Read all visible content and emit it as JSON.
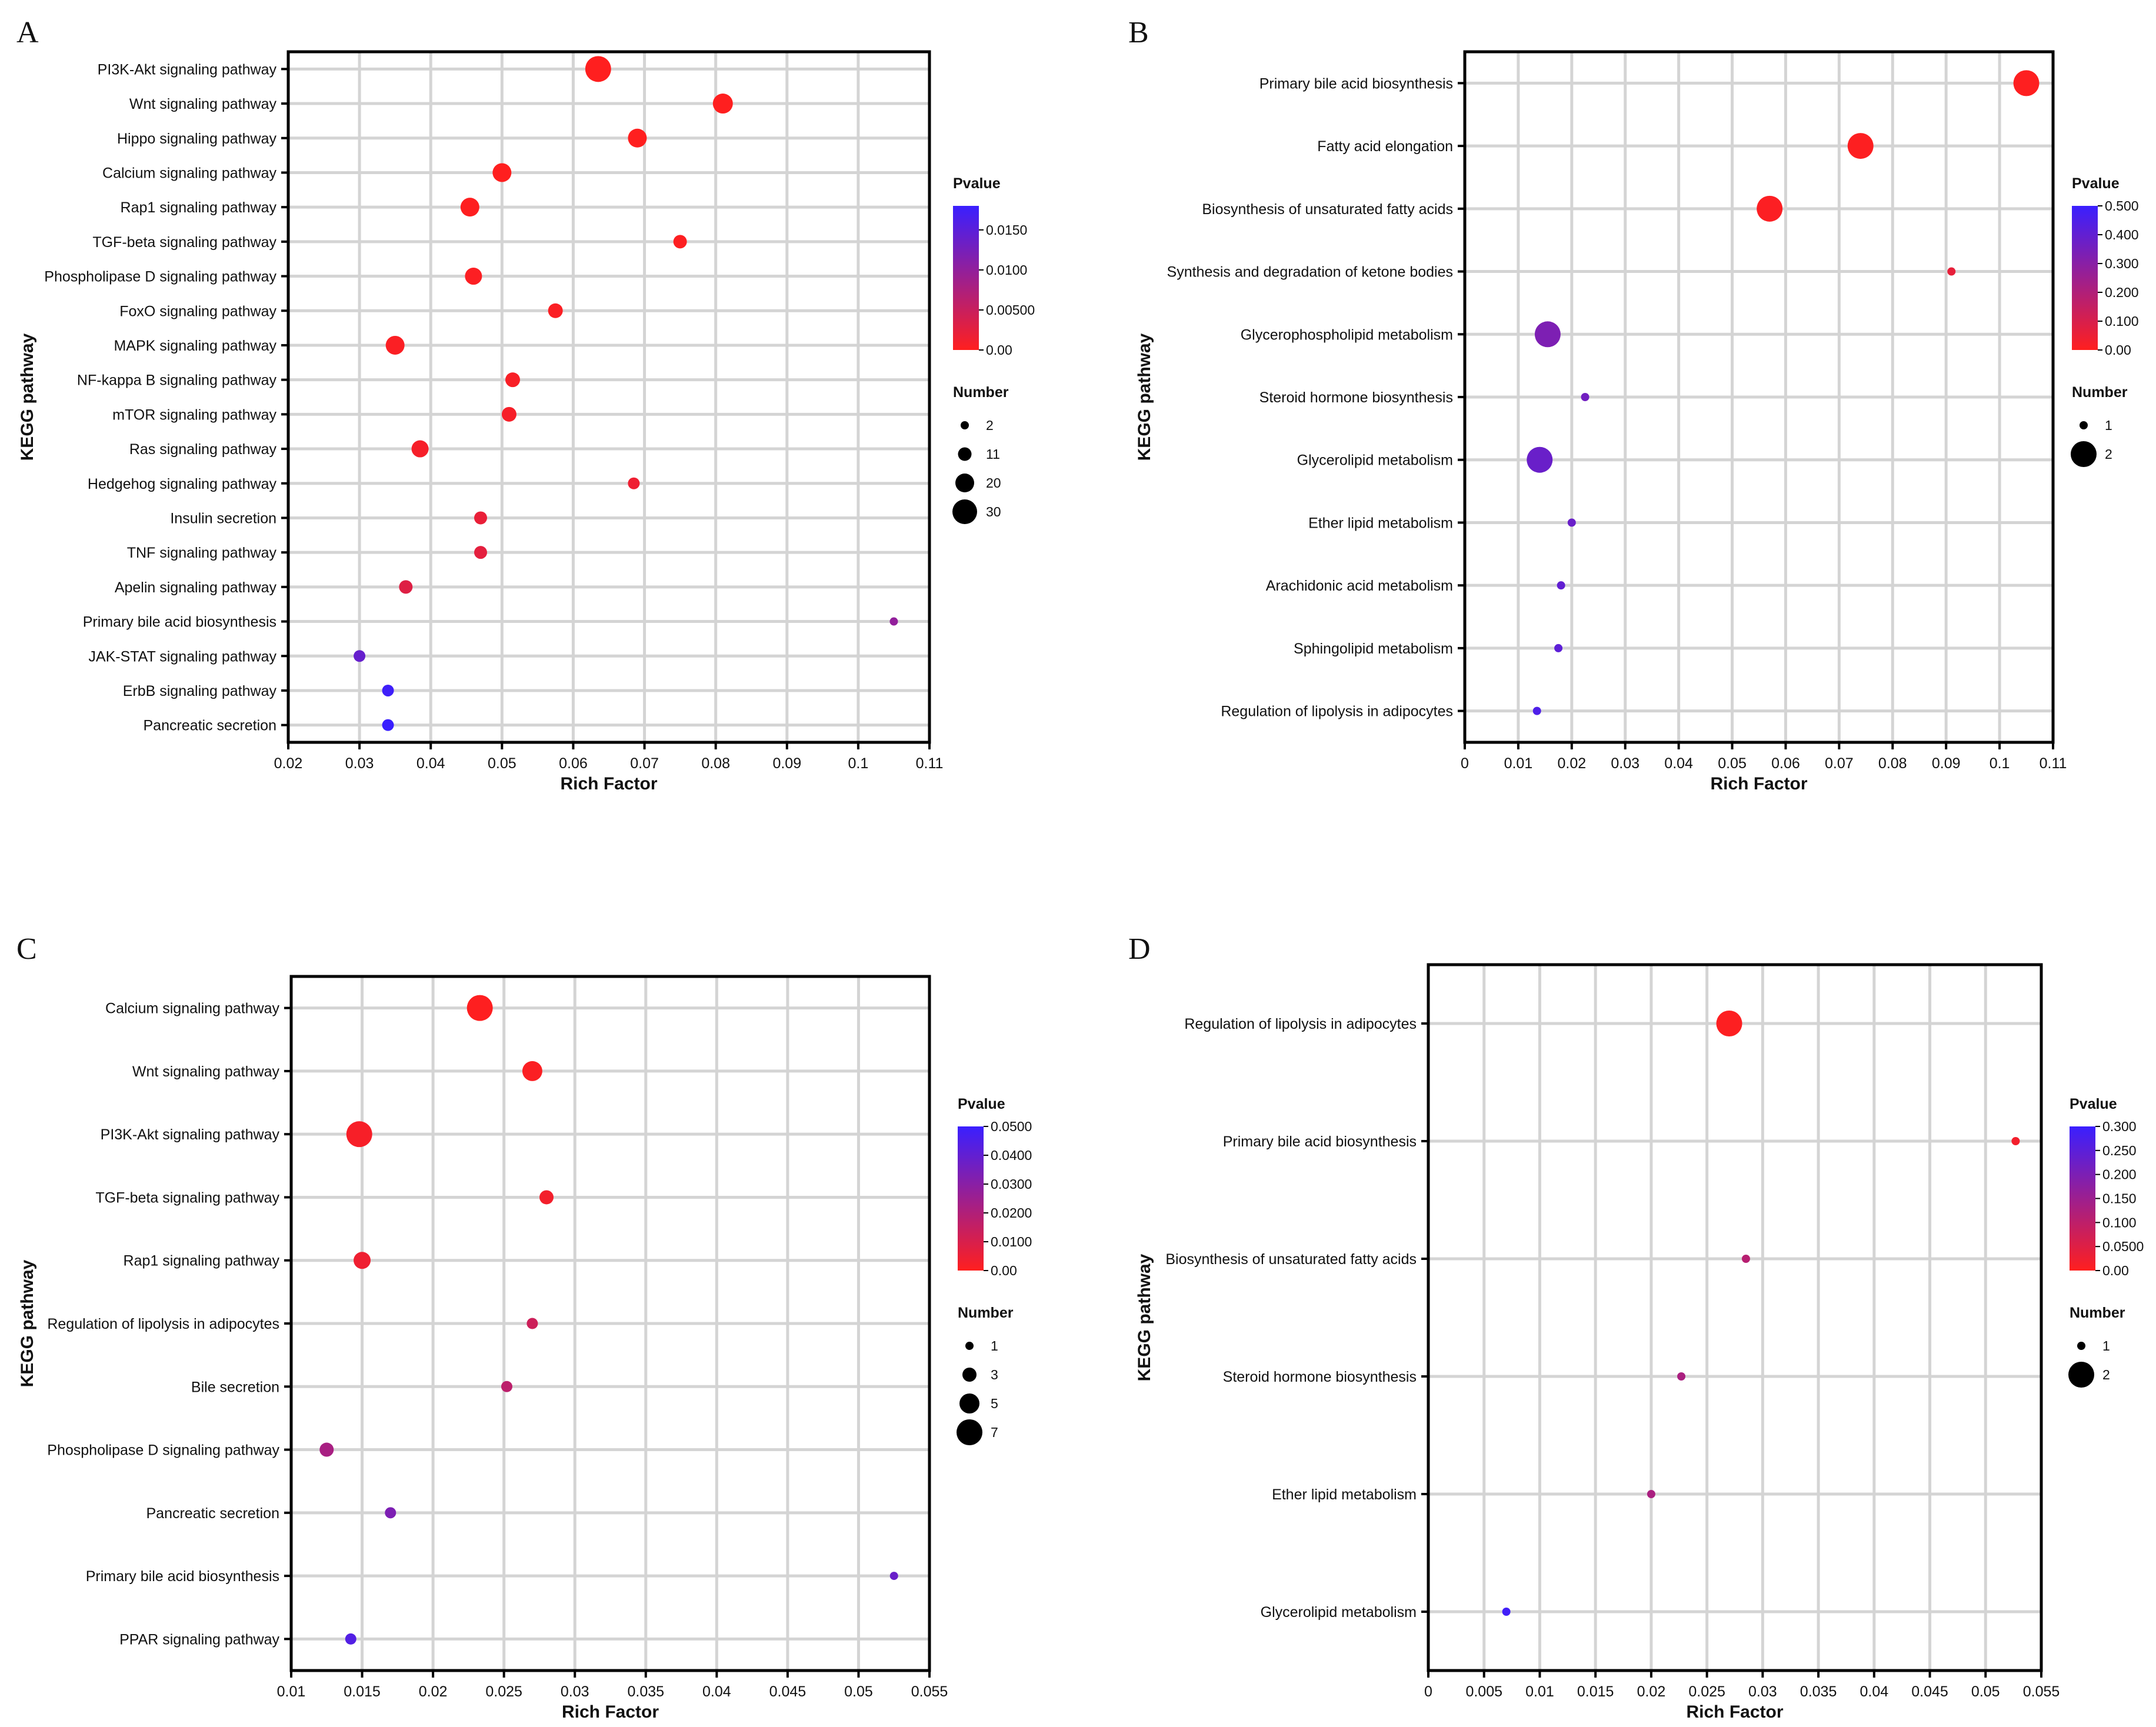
{
  "chart_data": [
    {
      "panel": "A",
      "type": "scatter",
      "xlabel": "Rich Factor",
      "ylabel": "KEGG pathway",
      "xlim": [
        0.02,
        0.11
      ],
      "xticks": [
        "0.02",
        "0.03",
        "0.04",
        "0.05",
        "0.06",
        "0.07",
        "0.08",
        "0.09",
        "0.1",
        "0.11"
      ],
      "categories": [
        "PI3K-Akt signaling pathway",
        "Wnt signaling pathway",
        "Hippo signaling pathway",
        "Calcium signaling pathway",
        "Rap1 signaling pathway",
        "TGF-beta signaling pathway",
        "Phospholipase D signaling pathway",
        "FoxO signaling pathway",
        "MAPK signaling pathway",
        "NF-kappa B signaling pathway",
        "mTOR signaling pathway",
        "Ras signaling pathway",
        "Hedgehog signaling pathway",
        "Insulin secretion",
        "TNF signaling pathway",
        "Apelin signaling pathway",
        "Primary bile acid biosynthesis",
        "JAK-STAT signaling pathway",
        "ErbB signaling pathway",
        "Pancreatic secretion"
      ],
      "x": [
        0.0635,
        0.081,
        0.069,
        0.05,
        0.0455,
        0.075,
        0.046,
        0.0575,
        0.035,
        0.0515,
        0.051,
        0.0385,
        0.0685,
        0.047,
        0.047,
        0.0365,
        0.105,
        0.03,
        0.034,
        0.034
      ],
      "number": [
        32,
        22,
        20,
        20,
        20,
        11,
        17,
        13,
        20,
        13,
        13,
        17,
        8,
        10,
        10,
        11,
        2,
        8,
        8,
        8
      ],
      "pvalue": [
        1e-05,
        1e-05,
        2e-05,
        3e-05,
        5e-05,
        0.0002,
        0.0003,
        0.0004,
        0.0004,
        0.0006,
        0.0008,
        0.0008,
        0.0015,
        0.002,
        0.0025,
        0.003,
        0.01,
        0.014,
        0.0175,
        0.018
      ],
      "legend": {
        "pvalue_title": "Pvalue",
        "pvalue_max": 0.018,
        "pvalue_ticks": [
          0.015,
          0.01,
          0.005,
          0.0
        ],
        "pvalue_labels": [
          "0.0150",
          "0.0100",
          "0.00500",
          "0.00"
        ],
        "number_title": "Number",
        "number_labels": [
          "2",
          "11",
          "20",
          "30"
        ],
        "number_values": [
          2,
          11,
          20,
          30
        ]
      }
    },
    {
      "panel": "B",
      "type": "scatter",
      "xlabel": "Rich Factor",
      "ylabel": "KEGG pathway",
      "xlim": [
        0,
        0.11
      ],
      "xticks": [
        "0",
        "0.01",
        "0.02",
        "0.03",
        "0.04",
        "0.05",
        "0.06",
        "0.07",
        "0.08",
        "0.09",
        "0.1",
        "0.11"
      ],
      "categories": [
        "Primary bile acid biosynthesis",
        "Fatty acid elongation",
        "Biosynthesis of unsaturated fatty acids",
        "Synthesis and degradation of ketone bodies",
        "Glycerophospholipid metabolism",
        "Steroid hormone biosynthesis",
        "Glycerolipid metabolism",
        "Ether lipid metabolism",
        "Arachidonic acid metabolism",
        "Sphingolipid metabolism",
        "Regulation of lipolysis in adipocytes"
      ],
      "x": [
        0.105,
        0.074,
        0.057,
        0.091,
        0.0155,
        0.0225,
        0.014,
        0.02,
        0.018,
        0.0175,
        0.0135
      ],
      "number": [
        2,
        2,
        2,
        1,
        2,
        1,
        2,
        1,
        1,
        1,
        1
      ],
      "pvalue": [
        0.003,
        0.005,
        0.008,
        0.06,
        0.33,
        0.36,
        0.38,
        0.38,
        0.4,
        0.41,
        0.45
      ],
      "legend": {
        "pvalue_title": "Pvalue",
        "pvalue_max": 0.5,
        "pvalue_ticks": [
          0.5,
          0.4,
          0.3,
          0.2,
          0.1,
          0.0
        ],
        "pvalue_labels": [
          "0.500",
          "0.400",
          "0.300",
          "0.200",
          "0.100",
          "0.00"
        ],
        "number_title": "Number",
        "number_labels": [
          "1",
          "2"
        ],
        "number_values": [
          1,
          2
        ]
      }
    },
    {
      "panel": "C",
      "type": "scatter",
      "xlabel": "Rich Factor",
      "ylabel": "KEGG pathway",
      "xlim": [
        0.01,
        0.055
      ],
      "xticks": [
        "0.01",
        "0.015",
        "0.02",
        "0.025",
        "0.03",
        "0.035",
        "0.04",
        "0.045",
        "0.05",
        "0.055"
      ],
      "categories": [
        "Calcium signaling pathway",
        "Wnt signaling pathway",
        "PI3K-Akt signaling pathway",
        "TGF-beta signaling pathway",
        "Rap1 signaling pathway",
        "Regulation of lipolysis in adipocytes",
        "Bile secretion",
        "Phospholipase D signaling pathway",
        "Pancreatic secretion",
        "Primary bile acid biosynthesis",
        "PPAR signaling pathway"
      ],
      "x": [
        0.0233,
        0.027,
        0.0148,
        0.028,
        0.015,
        0.027,
        0.0252,
        0.0125,
        0.017,
        0.0525,
        0.0142
      ],
      "number": [
        7,
        5,
        7,
        3,
        4,
        2,
        2,
        3,
        2,
        1,
        2
      ],
      "pvalue": [
        0.0003,
        0.001,
        0.002,
        0.003,
        0.004,
        0.013,
        0.017,
        0.022,
        0.033,
        0.038,
        0.044
      ],
      "legend": {
        "pvalue_title": "Pvalue",
        "pvalue_max": 0.05,
        "pvalue_ticks": [
          0.05,
          0.04,
          0.03,
          0.02,
          0.01,
          0.0
        ],
        "pvalue_labels": [
          "0.0500",
          "0.0400",
          "0.0300",
          "0.0200",
          "0.0100",
          "0.00"
        ],
        "number_title": "Number",
        "number_labels": [
          "1",
          "3",
          "5",
          "7"
        ],
        "number_values": [
          1,
          3,
          5,
          7
        ]
      }
    },
    {
      "panel": "D",
      "type": "scatter",
      "xlabel": "Rich Factor",
      "ylabel": "KEGG pathway",
      "xlim": [
        0,
        0.055
      ],
      "xticks": [
        "0",
        "0.005",
        "0.01",
        "0.015",
        "0.02",
        "0.025",
        "0.03",
        "0.035",
        "0.04",
        "0.045",
        "0.05",
        "0.055"
      ],
      "categories": [
        "Regulation of lipolysis in adipocytes",
        "Primary bile acid biosynthesis",
        "Biosynthesis of unsaturated fatty acids",
        "Steroid hormone biosynthesis",
        "Ether lipid metabolism",
        "Glycerolipid metabolism"
      ],
      "x": [
        0.027,
        0.0527,
        0.0285,
        0.0227,
        0.02,
        0.007
      ],
      "number": [
        2,
        1,
        1,
        1,
        1,
        1
      ],
      "pvalue": [
        0.003,
        0.018,
        0.11,
        0.13,
        0.13,
        0.29
      ],
      "legend": {
        "pvalue_title": "Pvalue",
        "pvalue_max": 0.3,
        "pvalue_ticks": [
          0.3,
          0.25,
          0.2,
          0.15,
          0.1,
          0.05,
          0.0
        ],
        "pvalue_labels": [
          "0.300",
          "0.250",
          "0.200",
          "0.150",
          "0.100",
          "0.0500",
          "0.00"
        ],
        "number_title": "Number",
        "number_labels": [
          "1",
          "2"
        ],
        "number_values": [
          1,
          2
        ]
      }
    }
  ],
  "colors": {
    "low_pvalue": "#ff1f1f",
    "high_pvalue": "#3a1fff",
    "grid": "#d4d4d4",
    "frame": "#000000"
  }
}
